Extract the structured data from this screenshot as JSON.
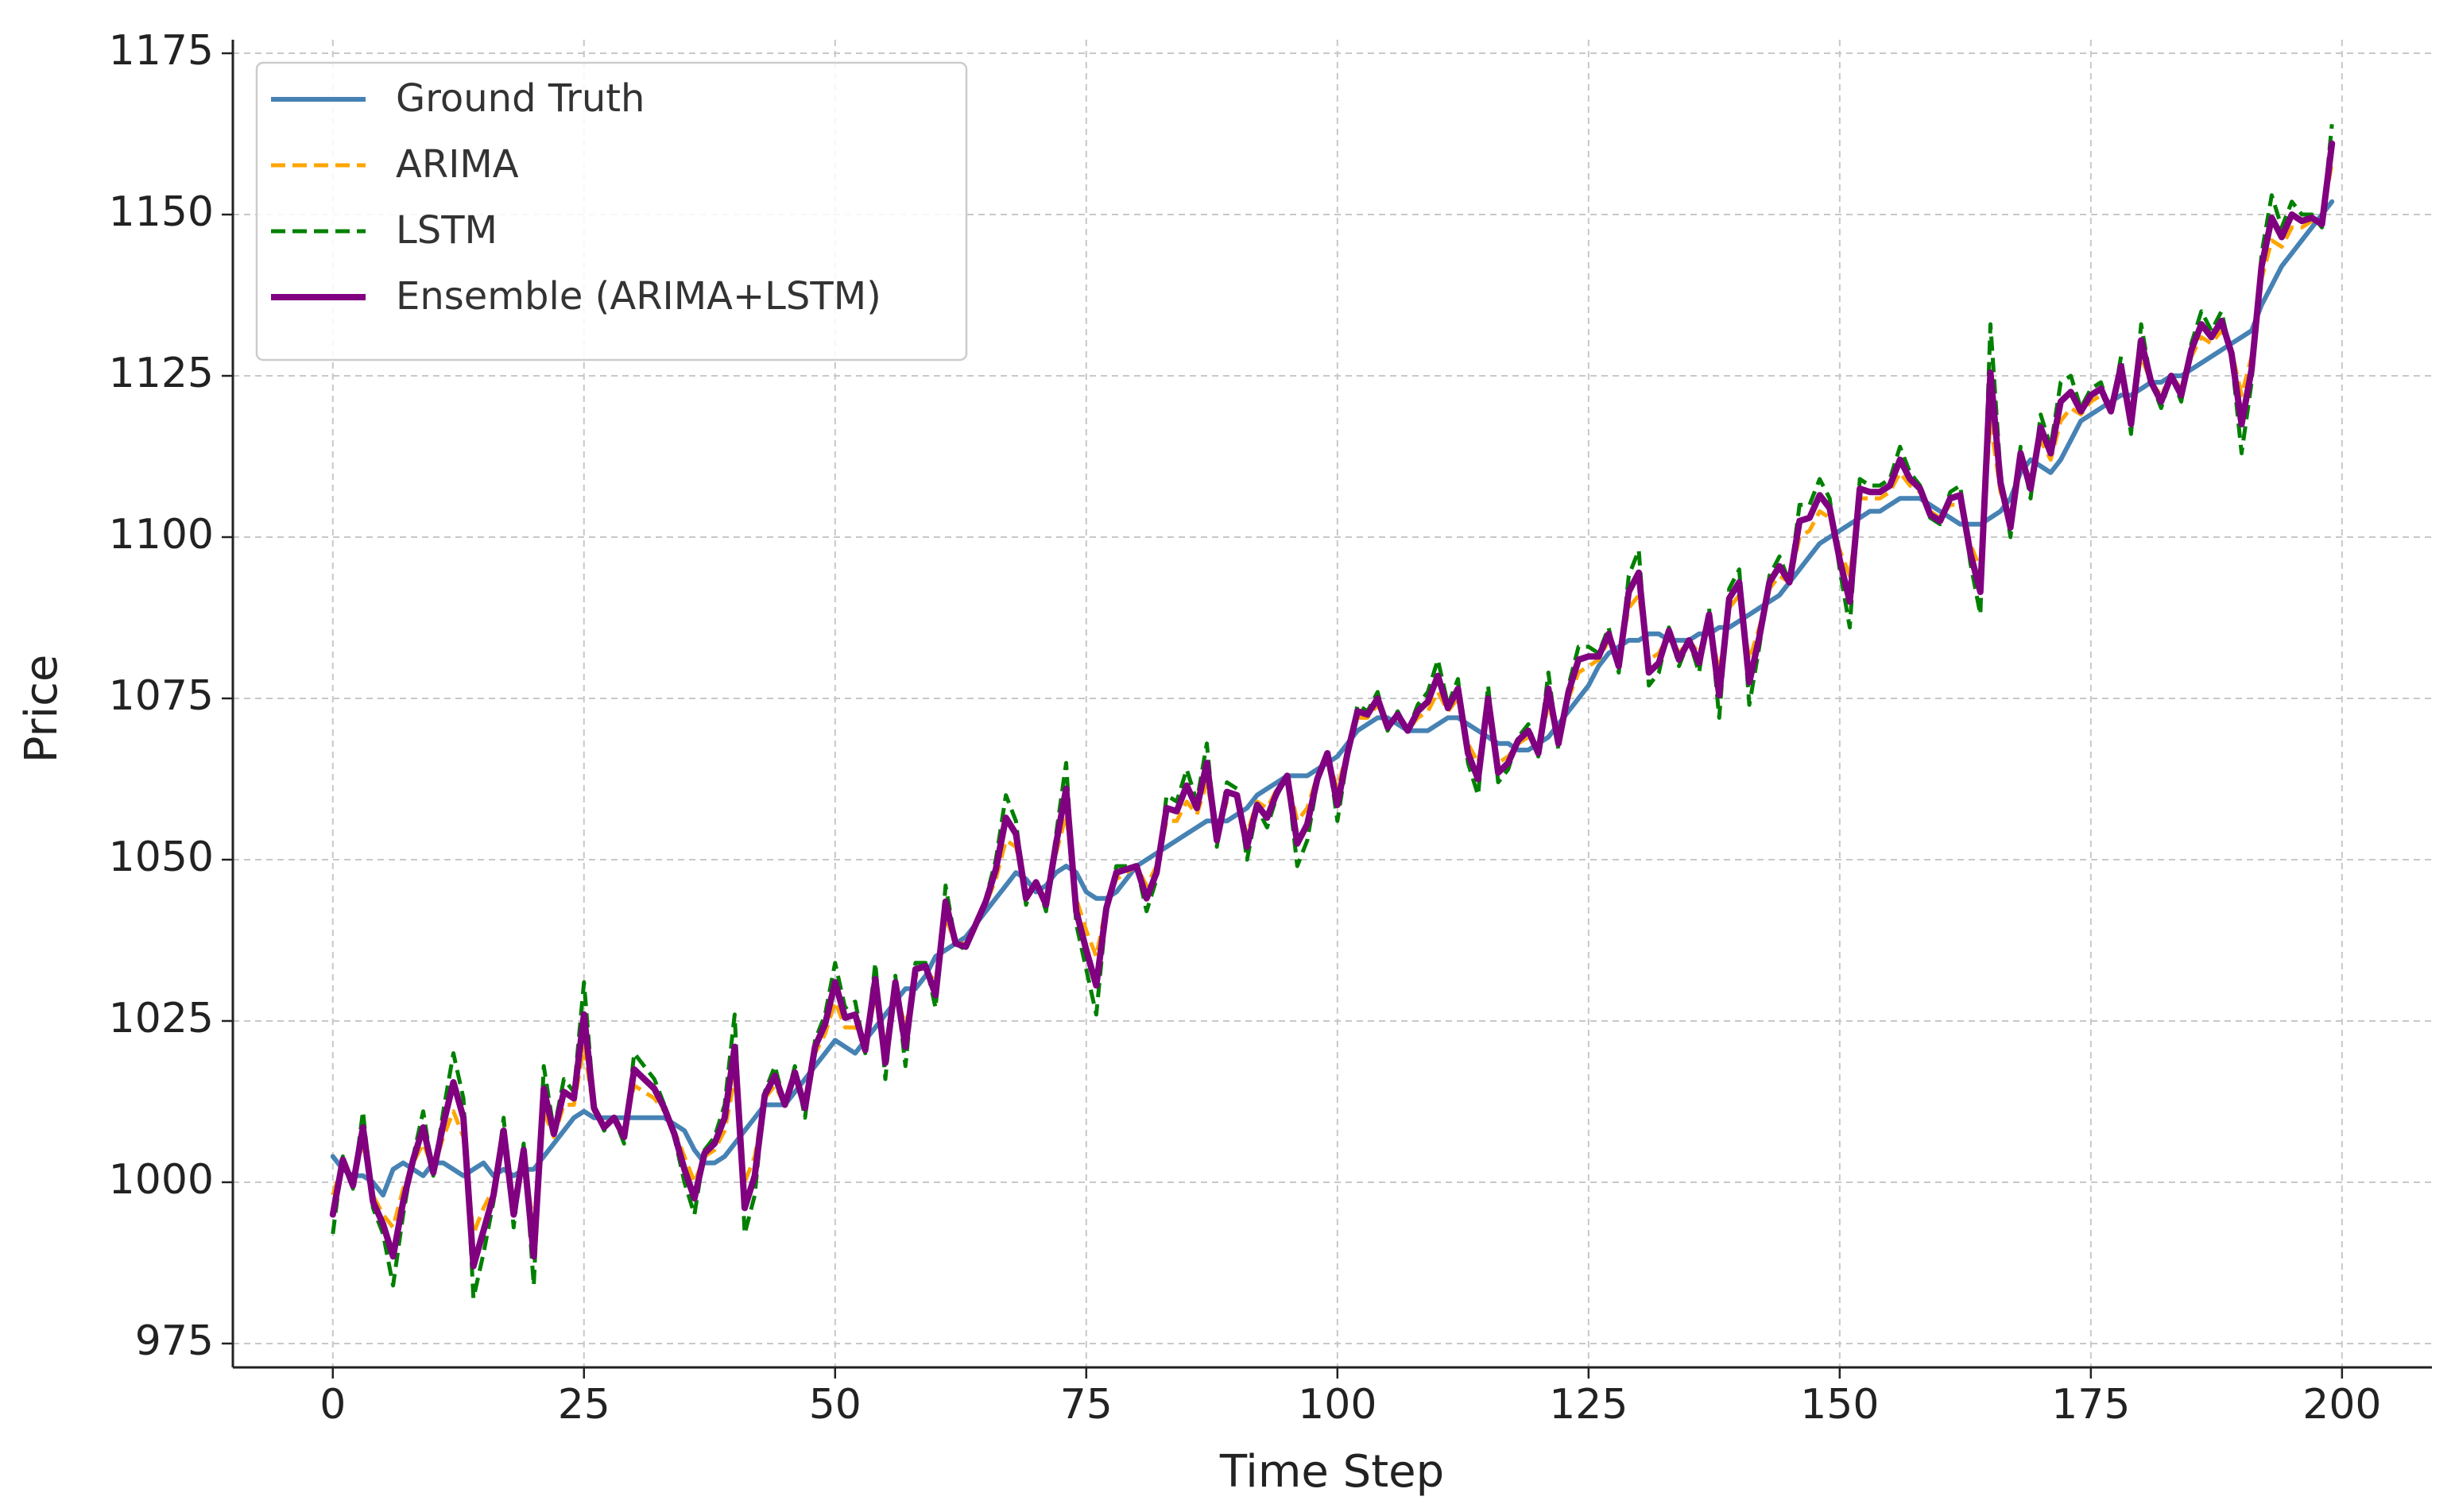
{
  "chart_data": {
    "type": "line",
    "xlabel": "Time Step",
    "ylabel": "Price",
    "xlim": [
      -9.95,
      208.95
    ],
    "ylim": [
      971.3,
      1177.1
    ],
    "xticks": [
      0,
      25,
      50,
      75,
      100,
      125,
      150,
      175,
      200
    ],
    "yticks": [
      975,
      1000,
      1025,
      1050,
      1075,
      1100,
      1125,
      1150,
      1175
    ],
    "grid": true,
    "legend": "upper left",
    "x": [
      0,
      1,
      2,
      3,
      4,
      5,
      6,
      7,
      8,
      9,
      10,
      11,
      12,
      13,
      14,
      15,
      16,
      17,
      18,
      19,
      20,
      21,
      22,
      23,
      24,
      25,
      26,
      27,
      28,
      29,
      30,
      31,
      32,
      33,
      34,
      35,
      36,
      37,
      38,
      39,
      40,
      41,
      42,
      43,
      44,
      45,
      46,
      47,
      48,
      49,
      50,
      51,
      52,
      53,
      54,
      55,
      56,
      57,
      58,
      59,
      60,
      61,
      62,
      63,
      64,
      65,
      66,
      67,
      68,
      69,
      70,
      71,
      72,
      73,
      74,
      75,
      76,
      77,
      78,
      79,
      80,
      81,
      82,
      83,
      84,
      85,
      86,
      87,
      88,
      89,
      90,
      91,
      92,
      93,
      94,
      95,
      96,
      97,
      98,
      99,
      100,
      101,
      102,
      103,
      104,
      105,
      106,
      107,
      108,
      109,
      110,
      111,
      112,
      113,
      114,
      115,
      116,
      117,
      118,
      119,
      120,
      121,
      122,
      123,
      124,
      125,
      126,
      127,
      128,
      129,
      130,
      131,
      132,
      133,
      134,
      135,
      136,
      137,
      138,
      139,
      140,
      141,
      142,
      143,
      144,
      145,
      146,
      147,
      148,
      149,
      150,
      151,
      152,
      153,
      154,
      155,
      156,
      157,
      158,
      159,
      160,
      161,
      162,
      163,
      164,
      165,
      166,
      167,
      168,
      169,
      170,
      171,
      172,
      173,
      174,
      175,
      176,
      177,
      178,
      179,
      180,
      181,
      182,
      183,
      184,
      185,
      186,
      187,
      188,
      189,
      190,
      191,
      192,
      193,
      194,
      195,
      196,
      197,
      198,
      199
    ],
    "series": [
      {
        "name": "Ground Truth",
        "color": "#4682b4",
        "style": "solid",
        "values": [
          1004,
          1002,
          1001,
          1001,
          1000,
          998,
          1002,
          1003,
          1002,
          1001,
          1003,
          1003,
          1002,
          1001,
          1002,
          1003,
          1001,
          1002,
          1001,
          1002,
          1002,
          1004,
          1006,
          1008,
          1010,
          1011,
          1010,
          1010,
          1010,
          1010,
          1010,
          1010,
          1010,
          1010,
          1009,
          1008,
          1005,
          1003,
          1003,
          1004,
          1006,
          1008,
          1010,
          1012,
          1012,
          1012,
          1014,
          1016,
          1018,
          1020,
          1022,
          1021,
          1020,
          1022,
          1024,
          1026,
          1028,
          1030,
          1030,
          1032,
          1035,
          1036,
          1037,
          1038,
          1040,
          1042,
          1044,
          1046,
          1048,
          1047,
          1045,
          1046,
          1048,
          1049,
          1048,
          1045,
          1044,
          1044,
          1045,
          1047,
          1049,
          1050,
          1051,
          1052,
          1053,
          1054,
          1055,
          1056,
          1056,
          1056,
          1057,
          1058,
          1060,
          1061,
          1062,
          1063,
          1063,
          1063,
          1064,
          1065,
          1066,
          1068,
          1070,
          1071,
          1072,
          1072,
          1071,
          1070,
          1070,
          1070,
          1071,
          1072,
          1072,
          1071,
          1070,
          1069,
          1068,
          1068,
          1067,
          1067,
          1068,
          1069,
          1071,
          1073,
          1075,
          1077,
          1080,
          1082,
          1083,
          1084,
          1084,
          1085,
          1085,
          1084,
          1084,
          1084,
          1085,
          1085,
          1086,
          1086,
          1087,
          1088,
          1089,
          1090,
          1091,
          1093,
          1095,
          1097,
          1099,
          1100,
          1101,
          1102,
          1103,
          1104,
          1104,
          1105,
          1106,
          1106,
          1106,
          1105,
          1104,
          1103,
          1102,
          1102,
          1102,
          1103,
          1104,
          1106,
          1110,
          1112,
          1111,
          1110,
          1112,
          1115,
          1118,
          1119,
          1120,
          1121,
          1122,
          1122,
          1123,
          1124,
          1124,
          1125,
          1125,
          1126,
          1127,
          1128,
          1129,
          1130,
          1131,
          1132,
          1136,
          1139,
          1142,
          1144,
          1146,
          1148,
          1150,
          1152
        ]
      },
      {
        "name": "ARIMA",
        "color": "#ffa500",
        "style": "dashed",
        "values": [
          998,
          1003,
          1000,
          1006,
          998,
          995,
          993,
          999,
          1003,
          1006,
          1002,
          1007,
          1011,
          1007,
          992,
          996,
          999,
          1006,
          997,
          1004,
          993,
          1011,
          1007,
          1012,
          1012,
          1021,
          1011,
          1009,
          1010,
          1008,
          1015,
          1014,
          1013,
          1011,
          1008,
          1004,
          1000,
          1004,
          1005,
          1008,
          1016,
          1000,
          1004,
          1013,
          1015,
          1012,
          1016,
          1013,
          1020,
          1023,
          1028,
          1024,
          1024,
          1021,
          1029,
          1021,
          1030,
          1024,
          1032,
          1033,
          1031,
          1041,
          1037,
          1037,
          1040,
          1043,
          1047,
          1053,
          1052,
          1045,
          1046,
          1044,
          1051,
          1057,
          1044,
          1039,
          1035,
          1043,
          1047,
          1048,
          1049,
          1046,
          1049,
          1056,
          1056,
          1059,
          1057,
          1062,
          1054,
          1059,
          1059,
          1054,
          1059,
          1058,
          1061,
          1063,
          1056,
          1058,
          1063,
          1066,
          1061,
          1067,
          1072,
          1072,
          1074,
          1071,
          1072,
          1070,
          1072,
          1073,
          1076,
          1073,
          1075,
          1068,
          1065,
          1073,
          1065,
          1066,
          1068,
          1069,
          1067,
          1074,
          1069,
          1075,
          1079,
          1080,
          1081,
          1084,
          1081,
          1089,
          1091,
          1081,
          1082,
          1085,
          1082,
          1084,
          1082,
          1087,
          1079,
          1089,
          1091,
          1081,
          1086,
          1092,
          1094,
          1093,
          1100,
          1101,
          1104,
          1103,
          1098,
          1094,
          1106,
          1106,
          1106,
          1107,
          1110,
          1108,
          1107,
          1104,
          1103,
          1105,
          1105,
          1099,
          1095,
          1118,
          1107,
          1103,
          1112,
          1109,
          1115,
          1112,
          1118,
          1120,
          1119,
          1121,
          1122,
          1120,
          1125,
          1119,
          1128,
          1124,
          1122,
          1125,
          1123,
          1128,
          1131,
          1130,
          1132,
          1129,
          1122,
          1128,
          1140,
          1146,
          1145,
          1148,
          1148,
          1149,
          1149,
          1158
        ]
      },
      {
        "name": "LSTM",
        "color": "#008000",
        "style": "dashed",
        "values": [
          992,
          1004,
          999,
          1011,
          996,
          992,
          984,
          995,
          1004,
          1011,
          1001,
          1011,
          1020,
          1013,
          982,
          989,
          997,
          1010,
          993,
          1006,
          984,
          1018,
          1008,
          1016,
          1014,
          1031,
          1012,
          1008,
          1010,
          1006,
          1020,
          1018,
          1016,
          1012,
          1007,
          1000,
          995,
          1005,
          1007,
          1012,
          1026,
          992,
          998,
          1014,
          1018,
          1012,
          1018,
          1010,
          1022,
          1026,
          1034,
          1027,
          1028,
          1020,
          1034,
          1016,
          1032,
          1018,
          1034,
          1034,
          1027,
          1046,
          1037,
          1036,
          1040,
          1044,
          1050,
          1060,
          1056,
          1043,
          1047,
          1042,
          1054,
          1065,
          1040,
          1033,
          1026,
          1042,
          1049,
          1049,
          1049,
          1042,
          1047,
          1060,
          1059,
          1064,
          1059,
          1068,
          1052,
          1062,
          1061,
          1050,
          1058,
          1055,
          1060,
          1063,
          1049,
          1053,
          1062,
          1067,
          1056,
          1066,
          1074,
          1073,
          1076,
          1070,
          1073,
          1070,
          1074,
          1076,
          1081,
          1074,
          1078,
          1065,
          1060,
          1077,
          1062,
          1064,
          1069,
          1071,
          1066,
          1079,
          1067,
          1077,
          1083,
          1083,
          1082,
          1086,
          1079,
          1094,
          1098,
          1077,
          1079,
          1086,
          1080,
          1084,
          1079,
          1089,
          1072,
          1092,
          1095,
          1074,
          1083,
          1094,
          1097,
          1093,
          1105,
          1105,
          1109,
          1106,
          1095,
          1086,
          1109,
          1108,
          1108,
          1109,
          1114,
          1110,
          1108,
          1103,
          1102,
          1107,
          1108,
          1096,
          1088,
          1133,
          1110,
          1100,
          1114,
          1106,
          1119,
          1114,
          1124,
          1125,
          1120,
          1123,
          1124,
          1119,
          1128,
          1116,
          1133,
          1124,
          1120,
          1125,
          1121,
          1130,
          1135,
          1132,
          1135,
          1128,
          1113,
          1124,
          1144,
          1153,
          1148,
          1152,
          1150,
          1150,
          1148,
          1164
        ]
      },
      {
        "name": "Ensemble (ARIMA+LSTM)",
        "color": "#800080",
        "style": "solid",
        "values": [
          995,
          1003.5,
          999.5,
          1008.5,
          997,
          993.5,
          988.5,
          997,
          1003.5,
          1008.5,
          1001.5,
          1009,
          1015.5,
          1010,
          987,
          992.5,
          998,
          1008,
          995,
          1005,
          988.5,
          1014.5,
          1007.5,
          1014,
          1013,
          1026,
          1011.5,
          1008.5,
          1010,
          1007,
          1017.5,
          1016,
          1014.5,
          1011.5,
          1007.5,
          1002,
          997.5,
          1004.5,
          1006,
          1010,
          1021,
          996,
          1001,
          1013.5,
          1016.5,
          1012,
          1017,
          1011.5,
          1021,
          1024.5,
          1031,
          1025.5,
          1026,
          1020.5,
          1031.5,
          1018.5,
          1031,
          1021,
          1033,
          1033.5,
          1029,
          1043.5,
          1037,
          1036.5,
          1040,
          1043.5,
          1048.5,
          1056.5,
          1054,
          1044,
          1046.5,
          1043,
          1052.5,
          1061,
          1042,
          1036,
          1030.5,
          1042.5,
          1048,
          1048.5,
          1049,
          1044,
          1048,
          1058,
          1057.5,
          1061.5,
          1058,
          1065,
          1053,
          1060.5,
          1060,
          1052,
          1058.5,
          1056.5,
          1060.5,
          1063,
          1052.5,
          1055.5,
          1062.5,
          1066.5,
          1058.5,
          1066.5,
          1073,
          1072.5,
          1075,
          1070.5,
          1072.5,
          1070,
          1073,
          1074.5,
          1078.5,
          1073.5,
          1076.5,
          1066.5,
          1062.5,
          1075,
          1063.5,
          1065,
          1068.5,
          1070,
          1066.5,
          1076.5,
          1068,
          1076,
          1081,
          1081.5,
          1081.5,
          1085,
          1080,
          1091.5,
          1094.5,
          1079,
          1080.5,
          1085.5,
          1081,
          1084,
          1080.5,
          1088,
          1075.5,
          1090.5,
          1093,
          1077.5,
          1084.5,
          1093,
          1095.5,
          1093,
          1102.5,
          1103,
          1106.5,
          1104.5,
          1096.5,
          1090,
          1107.5,
          1107,
          1107,
          1108,
          1112,
          1109,
          1107.5,
          1103.5,
          1102.5,
          1106,
          1106.5,
          1097.5,
          1091.5,
          1125.5,
          1108.5,
          1101.5,
          1113,
          1107.5,
          1117,
          1113,
          1121,
          1122.5,
          1119.5,
          1122,
          1123,
          1119.5,
          1126.5,
          1117.5,
          1130.5,
          1124,
          1121,
          1125,
          1122,
          1129,
          1133,
          1131,
          1133.5,
          1128.5,
          1117.5,
          1126,
          1142,
          1149.5,
          1146.5,
          1150,
          1149,
          1149.5,
          1148.5,
          1161
        ]
      }
    ]
  }
}
